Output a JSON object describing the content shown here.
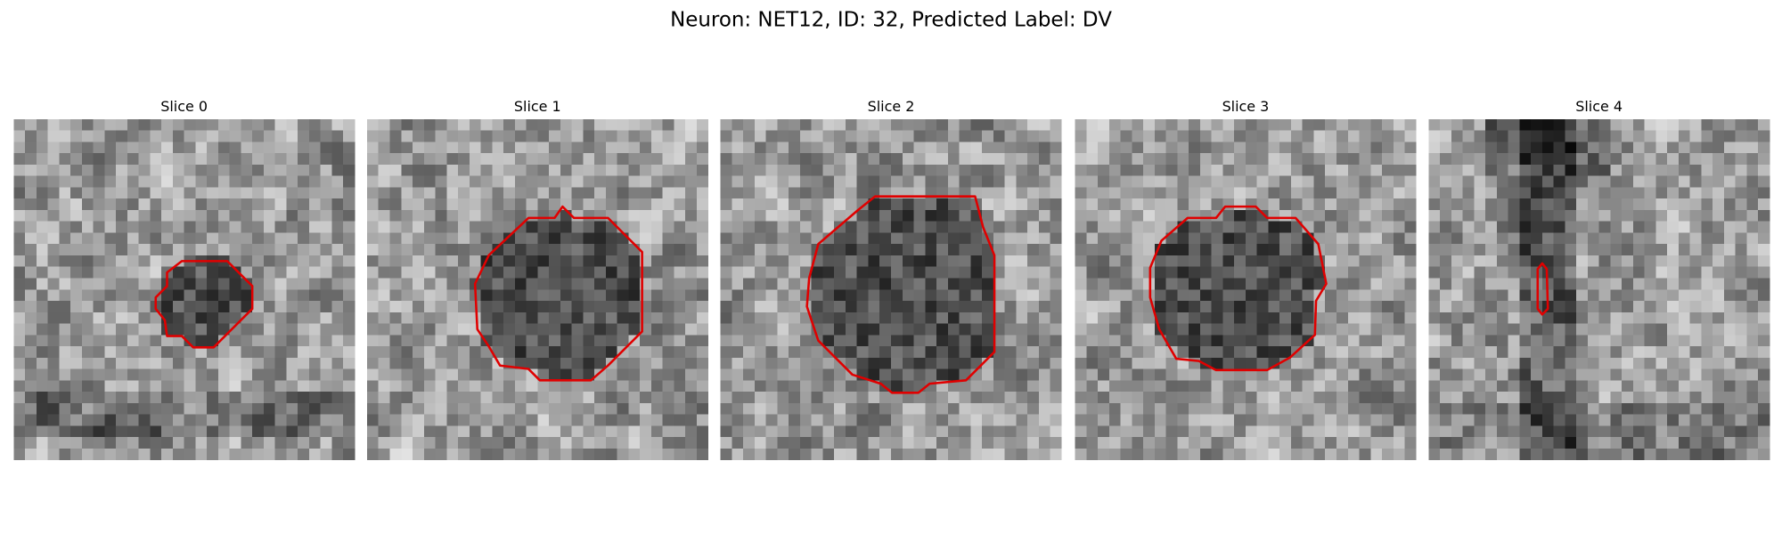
{
  "figure": {
    "title": "Neuron: NET12, ID: 32, Predicted Label: DV",
    "panels": [
      {
        "title": "Slice 0"
      },
      {
        "title": "Slice 1"
      },
      {
        "title": "Slice 2"
      },
      {
        "title": "Slice 3"
      },
      {
        "title": "Slice 4"
      }
    ]
  }
}
